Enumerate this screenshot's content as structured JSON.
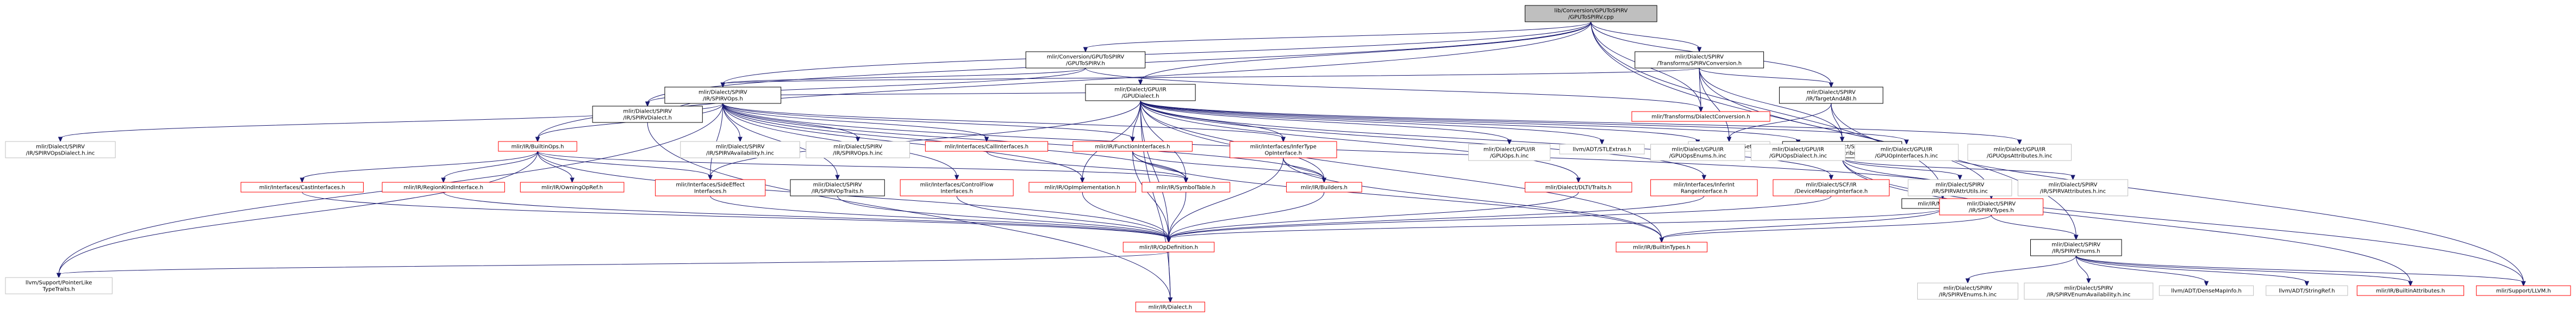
{
  "nodes": [
    {
      "id": "root",
      "lines": [
        "lib/Conversion/GPUToSPIRV",
        "/GPUToSPIRV.cpp"
      ],
      "style": "root"
    },
    {
      "id": "conv_h",
      "lines": [
        "mlir/Conversion/GPUToSPIRV",
        "/GPUToSPIRV.h"
      ],
      "style": "doc"
    },
    {
      "id": "spirvconv",
      "lines": [
        "mlir/Dialect/SPIRV",
        "/Transforms/SPIRVConversion.h"
      ],
      "style": "doc"
    },
    {
      "id": "gpudialect",
      "lines": [
        "mlir/Dialect/GPU/IR",
        "/GPUDialect.h"
      ],
      "style": "doc"
    },
    {
      "id": "spirvops",
      "lines": [
        "mlir/Dialect/SPIRV",
        "/IR/SPIRVOps.h"
      ],
      "style": "doc"
    },
    {
      "id": "spirvdialect",
      "lines": [
        "mlir/Dialect/SPIRV",
        "/IR/SPIRVDialect.h"
      ],
      "style": "doc"
    },
    {
      "id": "targetandabi",
      "lines": [
        "mlir/Dialect/SPIRV",
        "/IR/TargetAndABI.h"
      ],
      "style": "doc"
    },
    {
      "id": "dialectconversion",
      "lines": [
        "mlir/Transforms/DialectConversion.h"
      ],
      "style": "red"
    },
    {
      "id": "spirvattr",
      "lines": [
        "mlir/Dialect/SPIRV",
        "/IR/SPIRVAttributes.h"
      ],
      "style": "doc"
    },
    {
      "id": "smallset",
      "lines": [
        "llvm/ADT/SmallSet.h"
      ],
      "style": "ext"
    },
    {
      "id": "spirvopsdialect_inc",
      "lines": [
        "mlir/Dialect/SPIRV",
        "/IR/SPIRVOpsDialect.h.inc"
      ],
      "style": "ext"
    },
    {
      "id": "builtinops",
      "lines": [
        "mlir/IR/BuiltinOps.h"
      ],
      "style": "red"
    },
    {
      "id": "spirvavail",
      "lines": [
        "mlir/Dialect/SPIRV",
        "/IR/SPIRVAvailability.h.inc"
      ],
      "style": "ext"
    },
    {
      "id": "spirvops_inc",
      "lines": [
        "mlir/Dialect/SPIRV",
        "/IR/SPIRVOps.h.inc"
      ],
      "style": "ext"
    },
    {
      "id": "callinterfaces",
      "lines": [
        "mlir/Interfaces/CallInterfaces.h"
      ],
      "style": "red"
    },
    {
      "id": "funcinterfaces",
      "lines": [
        "mlir/IR/FunctionInterfaces.h"
      ],
      "style": "red"
    },
    {
      "id": "infertype",
      "lines": [
        "mlir/Interfaces/InferType",
        "OpInterface.h"
      ],
      "style": "red"
    },
    {
      "id": "gpuops_inc",
      "lines": [
        "mlir/Dialect/GPU/IR",
        "/GPUOps.h.inc"
      ],
      "style": "ext"
    },
    {
      "id": "stlextras",
      "lines": [
        "llvm/ADT/STLExtras.h"
      ],
      "style": "ext"
    },
    {
      "id": "gpuopsenums",
      "lines": [
        "mlir/Dialect/GPU/IR",
        "/GPUOpsEnums.h.inc"
      ],
      "style": "ext"
    },
    {
      "id": "gpuopsdialect",
      "lines": [
        "mlir/Dialect/GPU/IR",
        "/GPUOpsDialect.h.inc"
      ],
      "style": "ext"
    },
    {
      "id": "gpuopinterfaces",
      "lines": [
        "mlir/Dialect/GPU/IR",
        "/GPUOpInterfaces.h.inc"
      ],
      "style": "ext"
    },
    {
      "id": "gpuopsattr",
      "lines": [
        "mlir/Dialect/GPU/IR",
        "/GPUOpsAttributes.h.inc"
      ],
      "style": "ext"
    },
    {
      "id": "spirvattrutils",
      "lines": [
        "mlir/Dialect/SPIRV",
        "/IR/SPIRVAttrUtils.inc"
      ],
      "style": "ext"
    },
    {
      "id": "spirvattr_inc",
      "lines": [
        "mlir/Dialect/SPIRV",
        "/IR/SPIRVAttributes.h.inc"
      ],
      "style": "ext"
    },
    {
      "id": "castinterfaces",
      "lines": [
        "mlir/Interfaces/CastInterfaces.h"
      ],
      "style": "red"
    },
    {
      "id": "regionkind",
      "lines": [
        "mlir/IR/RegionKindInterface.h"
      ],
      "style": "red"
    },
    {
      "id": "owningopref",
      "lines": [
        "mlir/IR/OwningOpRef.h"
      ],
      "style": "red"
    },
    {
      "id": "sideeffect",
      "lines": [
        "mlir/Interfaces/SideEffect",
        "Interfaces.h"
      ],
      "style": "red"
    },
    {
      "id": "spirvogtraits",
      "lines": [
        "mlir/Dialect/SPIRV",
        "/IR/SPIRVOpTraits.h"
      ],
      "style": "doc"
    },
    {
      "id": "controlflow",
      "lines": [
        "mlir/Interfaces/ControlFlow",
        "Interfaces.h"
      ],
      "style": "red"
    },
    {
      "id": "opimpl",
      "lines": [
        "mlir/IR/OpImplementation.h"
      ],
      "style": "red"
    },
    {
      "id": "symboltable",
      "lines": [
        "mlir/IR/SymbolTable.h"
      ],
      "style": "red"
    },
    {
      "id": "builders",
      "lines": [
        "mlir/IR/Builders.h"
      ],
      "style": "red"
    },
    {
      "id": "dlti",
      "lines": [
        "mlir/Dialect/DLTI/Traits.h"
      ],
      "style": "red"
    },
    {
      "id": "inferint",
      "lines": [
        "mlir/Interfaces/InferInt",
        "RangeInterface.h"
      ],
      "style": "red"
    },
    {
      "id": "scfdevice",
      "lines": [
        "mlir/Dialect/SCF/IR",
        "/DeviceMappingInterface.h"
      ],
      "style": "red"
    },
    {
      "id": "matchers",
      "lines": [
        "mlir/IR/Matchers.h"
      ],
      "style": "doc"
    },
    {
      "id": "spirvtypes",
      "lines": [
        "mlir/Dialect/SPIRV",
        "/IR/SPIRVTypes.h"
      ],
      "style": "red"
    },
    {
      "id": "opdefinition",
      "lines": [
        "mlir/IR/OpDefinition.h"
      ],
      "style": "red"
    },
    {
      "id": "builtintypes",
      "lines": [
        "mlir/IR/BuiltinTypes.h"
      ],
      "style": "red"
    },
    {
      "id": "spirvenums",
      "lines": [
        "mlir/Dialect/SPIRV",
        "/IR/SPIRVEnums.h"
      ],
      "style": "doc"
    },
    {
      "id": "pointerlike",
      "lines": [
        "llvm/Support/PointerLike",
        "TypeTraits.h"
      ],
      "style": "ext"
    },
    {
      "id": "irdialect",
      "lines": [
        "mlir/IR/Dialect.h"
      ],
      "style": "red"
    },
    {
      "id": "spirvenums_inc",
      "lines": [
        "mlir/Dialect/SPIRV",
        "/IR/SPIRVEnums.h.inc"
      ],
      "style": "ext"
    },
    {
      "id": "spirvenumavail",
      "lines": [
        "mlir/Dialect/SPIRV",
        "/IR/SPIRVEnumAvailability.h.inc"
      ],
      "style": "ext"
    },
    {
      "id": "densemapinfo",
      "lines": [
        "llvm/ADT/DenseMapInfo.h"
      ],
      "style": "ext"
    },
    {
      "id": "stringref",
      "lines": [
        "llvm/ADT/StringRef.h"
      ],
      "style": "ext"
    },
    {
      "id": "builtinattr",
      "lines": [
        "mlir/IR/BuiltinAttributes.h"
      ],
      "style": "red"
    },
    {
      "id": "supportllvm",
      "lines": [
        "mlir/Support/LLVM.h"
      ],
      "style": "red"
    }
  ],
  "edges": [
    [
      "root",
      "conv_h"
    ],
    [
      "root",
      "spirvconv"
    ],
    [
      "root",
      "gpudialect"
    ],
    [
      "root",
      "spirvops"
    ],
    [
      "root",
      "spirvdialect"
    ],
    [
      "root",
      "targetandabi"
    ],
    [
      "root",
      "dialectconversion"
    ],
    [
      "root",
      "builtinops"
    ],
    [
      "root",
      "matchers"
    ],
    [
      "root",
      "spirvenums"
    ],
    [
      "conv_h",
      "spirvdialect"
    ],
    [
      "conv_h",
      "dialectconversion"
    ],
    [
      "conv_h",
      "spirvops"
    ],
    [
      "spirvconv",
      "spirvops"
    ],
    [
      "spirvconv",
      "targetandabi"
    ],
    [
      "spirvconv",
      "dialectconversion"
    ],
    [
      "spirvconv",
      "smallset"
    ],
    [
      "spirvconv",
      "spirvtypes"
    ],
    [
      "spirvconv",
      "spirvattr"
    ],
    [
      "targetandabi",
      "spirvattr"
    ],
    [
      "targetandabi",
      "smallset"
    ],
    [
      "targetandabi",
      "supportllvm"
    ],
    [
      "spirvattr",
      "spirvattrutils"
    ],
    [
      "spirvattr",
      "spirvattr_inc"
    ],
    [
      "spirvattr",
      "spirvtypes"
    ],
    [
      "spirvattr",
      "supportllvm"
    ],
    [
      "spirvattr",
      "builtinattr"
    ],
    [
      "gpudialect",
      "spirvops"
    ],
    [
      "gpudialect",
      "funcinterfaces"
    ],
    [
      "gpudialect",
      "infertype"
    ],
    [
      "gpudialect",
      "gpuops_inc"
    ],
    [
      "gpudialect",
      "stlextras"
    ],
    [
      "gpudialect",
      "gpuopsenums"
    ],
    [
      "gpudialect",
      "gpuopsdialect"
    ],
    [
      "gpudialect",
      "gpuopinterfaces"
    ],
    [
      "gpudialect",
      "gpuopsattr"
    ],
    [
      "gpudialect",
      "dlti"
    ],
    [
      "gpudialect",
      "inferint"
    ],
    [
      "gpudialect",
      "scfdevice"
    ],
    [
      "gpudialect",
      "opimpl"
    ],
    [
      "gpudialect",
      "symboltable"
    ],
    [
      "gpudialect",
      "builders"
    ],
    [
      "gpudialect",
      "sideeffect"
    ],
    [
      "gpudialect",
      "builtintypes"
    ],
    [
      "gpudialect",
      "opdefinition"
    ],
    [
      "gpudialect",
      "irdialect"
    ],
    [
      "spirvops",
      "spirvopsdialect_inc"
    ],
    [
      "spirvops",
      "builtinops"
    ],
    [
      "spirvops",
      "spirvavail"
    ],
    [
      "spirvops",
      "spirvops_inc"
    ],
    [
      "spirvops",
      "callinterfaces"
    ],
    [
      "spirvops",
      "funcinterfaces"
    ],
    [
      "spirvops",
      "infertype"
    ],
    [
      "spirvops",
      "spirvogtraits"
    ],
    [
      "spirvops",
      "controlflow"
    ],
    [
      "spirvops",
      "opimpl"
    ],
    [
      "spirvops",
      "sideeffect"
    ],
    [
      "spirvops",
      "pointerlike"
    ],
    [
      "spirvops",
      "spirvtypes"
    ],
    [
      "spirvops",
      "symboltable"
    ],
    [
      "spirvops",
      "builders"
    ],
    [
      "spirvdialect",
      "irdialect"
    ],
    [
      "spirvdialect",
      "spirvops"
    ],
    [
      "builtinops",
      "castinterfaces"
    ],
    [
      "builtinops",
      "regionkind"
    ],
    [
      "builtinops",
      "owningopref"
    ],
    [
      "builtinops",
      "sideeffect"
    ],
    [
      "builtinops",
      "symboltable"
    ],
    [
      "builtinops",
      "opdefinition"
    ],
    [
      "builtinops",
      "pointerlike"
    ],
    [
      "callinterfaces",
      "symboltable"
    ],
    [
      "funcinterfaces",
      "symboltable"
    ],
    [
      "funcinterfaces",
      "builders"
    ],
    [
      "funcinterfaces",
      "opdefinition"
    ],
    [
      "funcinterfaces",
      "builtintypes"
    ],
    [
      "infertype",
      "builders"
    ],
    [
      "infertype",
      "opdefinition"
    ],
    [
      "infertype",
      "builtintypes"
    ],
    [
      "castinterfaces",
      "opdefinition"
    ],
    [
      "regionkind",
      "opdefinition"
    ],
    [
      "sideeffect",
      "opdefinition"
    ],
    [
      "spirvogtraits",
      "opdefinition"
    ],
    [
      "controlflow",
      "opdefinition"
    ],
    [
      "opimpl",
      "opdefinition"
    ],
    [
      "symboltable",
      "opdefinition"
    ],
    [
      "builders",
      "opdefinition"
    ],
    [
      "dlti",
      "opdefinition"
    ],
    [
      "inferint",
      "opdefinition"
    ],
    [
      "scfdevice",
      "opdefinition"
    ],
    [
      "matchers",
      "opdefinition"
    ],
    [
      "matchers",
      "builtintypes"
    ],
    [
      "spirvtypes",
      "builtintypes"
    ],
    [
      "spirvtypes",
      "spirvenums"
    ],
    [
      "opdefinition",
      "irdialect"
    ],
    [
      "opdefinition",
      "pointerlike"
    ],
    [
      "spirvenums",
      "spirvenums_inc"
    ],
    [
      "spirvenums",
      "spirvenumavail"
    ],
    [
      "spirvenums",
      "densemapinfo"
    ],
    [
      "spirvenums",
      "stringref"
    ],
    [
      "spirvenums",
      "builtinattr"
    ],
    [
      "spirvenums",
      "supportllvm"
    ]
  ]
}
